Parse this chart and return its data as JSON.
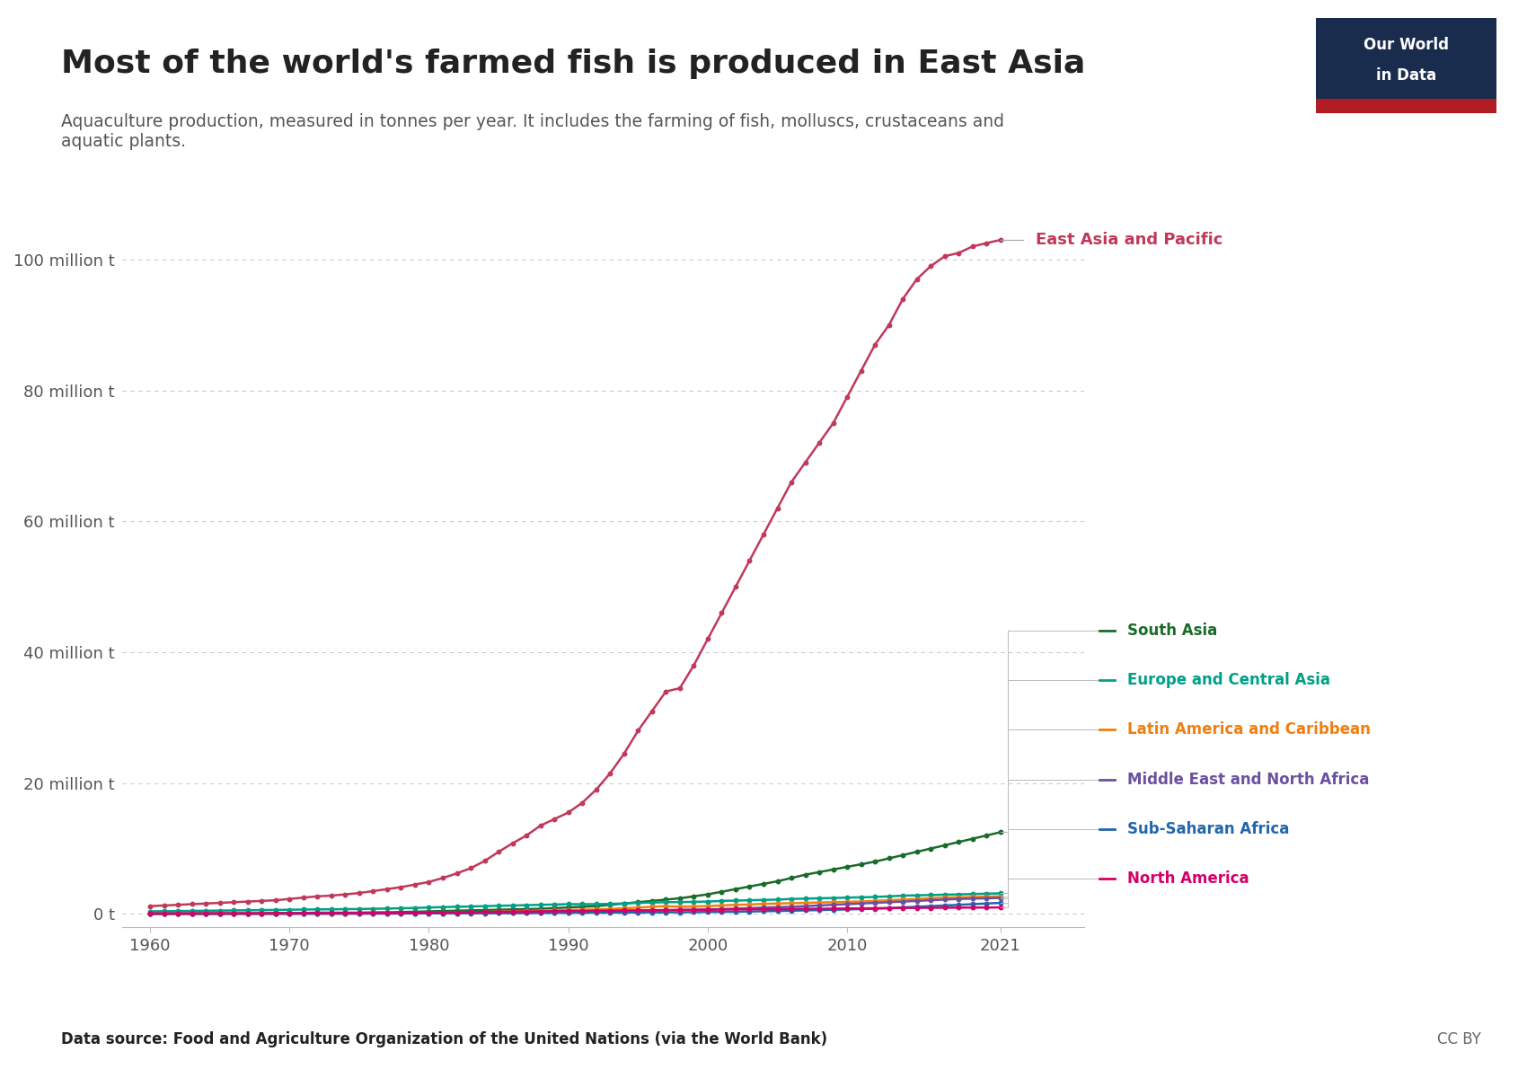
{
  "title": "Most of the world's farmed fish is produced in East Asia",
  "subtitle": "Aquaculture production, measured in tonnes per year. It includes the farming of fish, molluscs, crustaceans and\naquatic plants.",
  "source": "Data source: Food and Agriculture Organization of the United Nations (via the World Bank)",
  "cc": "CC BY",
  "years": [
    1960,
    1961,
    1962,
    1963,
    1964,
    1965,
    1966,
    1967,
    1968,
    1969,
    1970,
    1971,
    1972,
    1973,
    1974,
    1975,
    1976,
    1977,
    1978,
    1979,
    1980,
    1981,
    1982,
    1983,
    1984,
    1985,
    1986,
    1987,
    1988,
    1989,
    1990,
    1991,
    1992,
    1993,
    1994,
    1995,
    1996,
    1997,
    1998,
    1999,
    2000,
    2001,
    2002,
    2003,
    2004,
    2005,
    2006,
    2007,
    2008,
    2009,
    2010,
    2011,
    2012,
    2013,
    2014,
    2015,
    2016,
    2017,
    2018,
    2019,
    2020,
    2021
  ],
  "series": {
    "East Asia and Pacific": {
      "color": "#C0395B",
      "values": [
        1.2,
        1.3,
        1.4,
        1.5,
        1.6,
        1.7,
        1.8,
        1.9,
        2.0,
        2.1,
        2.3,
        2.5,
        2.7,
        2.8,
        3.0,
        3.2,
        3.5,
        3.8,
        4.1,
        4.5,
        4.9,
        5.5,
        6.2,
        7.0,
        8.1,
        9.5,
        10.8,
        12.0,
        13.5,
        14.5,
        15.5,
        17.0,
        19.0,
        21.5,
        24.5,
        28.0,
        31.0,
        34.0,
        34.5,
        38.0,
        42.0,
        46.0,
        50.0,
        54.0,
        58.0,
        62.0,
        66.0,
        69.0,
        72.0,
        75.0,
        79.0,
        83.0,
        87.0,
        90.0,
        94.0,
        97.0,
        99.0,
        100.5,
        101.0,
        102.0,
        102.5,
        103.0
      ],
      "label": "East Asia and Pacific"
    },
    "South Asia": {
      "color": "#1A6B2A",
      "values": [
        0.1,
        0.1,
        0.1,
        0.1,
        0.1,
        0.1,
        0.1,
        0.1,
        0.1,
        0.15,
        0.15,
        0.15,
        0.2,
        0.2,
        0.2,
        0.2,
        0.25,
        0.25,
        0.3,
        0.35,
        0.4,
        0.45,
        0.5,
        0.55,
        0.6,
        0.65,
        0.7,
        0.75,
        0.8,
        0.9,
        1.0,
        1.1,
        1.2,
        1.4,
        1.6,
        1.8,
        2.0,
        2.2,
        2.4,
        2.7,
        3.0,
        3.4,
        3.8,
        4.2,
        4.6,
        5.0,
        5.5,
        6.0,
        6.4,
        6.8,
        7.2,
        7.6,
        8.0,
        8.5,
        9.0,
        9.5,
        10.0,
        10.5,
        11.0,
        11.5,
        12.0,
        12.5
      ],
      "label": "South Asia"
    },
    "Europe and Central Asia": {
      "color": "#00A087",
      "values": [
        0.4,
        0.42,
        0.45,
        0.47,
        0.5,
        0.52,
        0.55,
        0.57,
        0.6,
        0.62,
        0.65,
        0.68,
        0.7,
        0.72,
        0.74,
        0.76,
        0.8,
        0.83,
        0.88,
        0.92,
        1.0,
        1.05,
        1.1,
        1.15,
        1.2,
        1.25,
        1.3,
        1.35,
        1.4,
        1.45,
        1.5,
        1.5,
        1.5,
        1.55,
        1.6,
        1.7,
        1.75,
        1.8,
        1.82,
        1.85,
        1.9,
        2.0,
        2.05,
        2.1,
        2.15,
        2.2,
        2.3,
        2.35,
        2.4,
        2.45,
        2.5,
        2.55,
        2.6,
        2.7,
        2.8,
        2.85,
        2.9,
        2.95,
        3.0,
        3.05,
        3.1,
        3.15
      ],
      "label": "Europe and Central Asia"
    },
    "Latin America and Caribbean": {
      "color": "#F07E10",
      "values": [
        0.05,
        0.05,
        0.05,
        0.06,
        0.06,
        0.06,
        0.07,
        0.07,
        0.08,
        0.08,
        0.09,
        0.1,
        0.1,
        0.11,
        0.12,
        0.13,
        0.14,
        0.15,
        0.16,
        0.18,
        0.2,
        0.22,
        0.25,
        0.28,
        0.32,
        0.36,
        0.4,
        0.45,
        0.5,
        0.55,
        0.6,
        0.65,
        0.7,
        0.78,
        0.88,
        0.98,
        1.1,
        1.2,
        1.1,
        1.15,
        1.2,
        1.3,
        1.4,
        1.45,
        1.55,
        1.6,
        1.65,
        1.7,
        1.75,
        1.8,
        1.85,
        1.9,
        2.0,
        2.1,
        2.2,
        2.3,
        2.4,
        2.5,
        2.55,
        2.6,
        2.65,
        2.7
      ],
      "label": "Latin America and Caribbean"
    },
    "Middle East and North Africa": {
      "color": "#6B4FA0",
      "values": [
        0.02,
        0.02,
        0.02,
        0.02,
        0.02,
        0.03,
        0.03,
        0.03,
        0.04,
        0.04,
        0.04,
        0.05,
        0.05,
        0.05,
        0.06,
        0.06,
        0.07,
        0.07,
        0.08,
        0.09,
        0.1,
        0.11,
        0.12,
        0.13,
        0.14,
        0.15,
        0.16,
        0.18,
        0.2,
        0.22,
        0.25,
        0.28,
        0.32,
        0.36,
        0.4,
        0.44,
        0.5,
        0.55,
        0.6,
        0.65,
        0.7,
        0.75,
        0.82,
        0.9,
        0.98,
        1.05,
        1.1,
        1.2,
        1.3,
        1.4,
        1.5,
        1.6,
        1.7,
        1.8,
        1.9,
        2.0,
        2.1,
        2.2,
        2.3,
        2.35,
        2.4,
        2.45
      ],
      "label": "Middle East and North Africa"
    },
    "Sub-Saharan Africa": {
      "color": "#2166AC",
      "values": [
        0.03,
        0.03,
        0.03,
        0.03,
        0.03,
        0.04,
        0.04,
        0.04,
        0.04,
        0.05,
        0.05,
        0.05,
        0.06,
        0.06,
        0.06,
        0.07,
        0.07,
        0.08,
        0.08,
        0.09,
        0.1,
        0.1,
        0.11,
        0.12,
        0.12,
        0.13,
        0.14,
        0.15,
        0.16,
        0.17,
        0.18,
        0.19,
        0.2,
        0.21,
        0.22,
        0.23,
        0.24,
        0.25,
        0.26,
        0.28,
        0.3,
        0.32,
        0.35,
        0.38,
        0.42,
        0.46,
        0.5,
        0.55,
        0.6,
        0.65,
        0.7,
        0.75,
        0.8,
        0.9,
        1.0,
        1.1,
        1.2,
        1.3,
        1.4,
        1.5,
        1.6,
        1.7
      ],
      "label": "Sub-Saharan Africa"
    },
    "North America": {
      "color": "#D4006A",
      "values": [
        0.08,
        0.08,
        0.09,
        0.09,
        0.1,
        0.1,
        0.1,
        0.11,
        0.11,
        0.12,
        0.12,
        0.13,
        0.14,
        0.14,
        0.15,
        0.15,
        0.16,
        0.17,
        0.18,
        0.2,
        0.22,
        0.24,
        0.26,
        0.28,
        0.3,
        0.32,
        0.35,
        0.38,
        0.4,
        0.43,
        0.45,
        0.47,
        0.5,
        0.52,
        0.54,
        0.56,
        0.58,
        0.6,
        0.62,
        0.63,
        0.65,
        0.67,
        0.7,
        0.72,
        0.74,
        0.75,
        0.77,
        0.78,
        0.8,
        0.82,
        0.84,
        0.86,
        0.88,
        0.9,
        0.92,
        0.94,
        0.95,
        0.96,
        0.97,
        0.98,
        0.99,
        1.0
      ],
      "label": "North America"
    }
  },
  "yticks": [
    0,
    20,
    40,
    60,
    80,
    100
  ],
  "ytick_labels": [
    "0 t",
    "20 million t",
    "40 million t",
    "60 million t",
    "80 million t",
    "100 million t"
  ],
  "xticks": [
    1960,
    1970,
    1980,
    1990,
    2000,
    2010,
    2021
  ],
  "xlim": [
    1958,
    2027
  ],
  "ylim": [
    -2,
    110
  ],
  "background_color": "#ffffff",
  "grid_color": "#cccccc",
  "title_color": "#2C2C2C",
  "subtitle_color": "#666666",
  "owid_box_color": "#1a2c4e",
  "owid_red": "#B01E23"
}
